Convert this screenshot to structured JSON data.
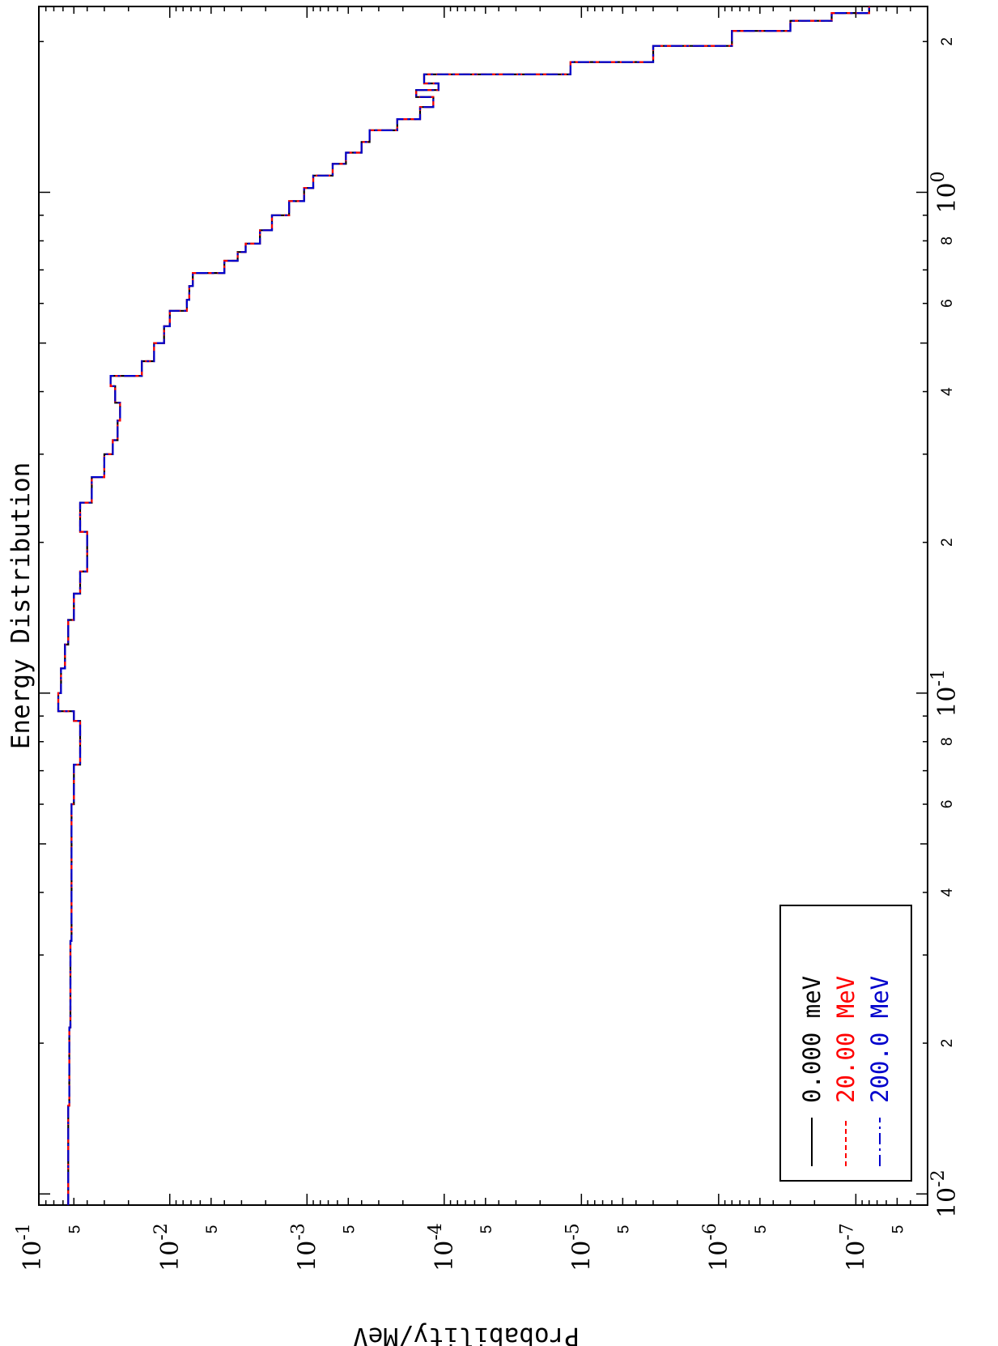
{
  "chart_data": {
    "type": "line",
    "title": "Energy Distribution",
    "xlabel": "",
    "ylabel": "Probability/MeV",
    "x_scale": "log",
    "y_scale": "log",
    "xlim": [
      0.0095,
      2.35
    ],
    "ylim": [
      3e-08,
      0.09
    ],
    "x_ticks": [
      {
        "value": 0.01,
        "base": "10",
        "exp": "-2"
      },
      {
        "value": 0.02,
        "label": "2"
      },
      {
        "value": 0.04,
        "label": "4"
      },
      {
        "value": 0.06,
        "label": "6"
      },
      {
        "value": 0.08,
        "label": "8"
      },
      {
        "value": 0.1,
        "base": "10",
        "exp": "-1"
      },
      {
        "value": 0.2,
        "label": "2"
      },
      {
        "value": 0.4,
        "label": "4"
      },
      {
        "value": 0.6,
        "label": "6"
      },
      {
        "value": 0.8,
        "label": "8"
      },
      {
        "value": 1.0,
        "base": "10",
        "exp": "0"
      },
      {
        "value": 2.0,
        "label": "2"
      }
    ],
    "y_ticks": [
      {
        "value": 0.1,
        "base": "10",
        "exp": "-1"
      },
      {
        "value": 0.05,
        "label": "5"
      },
      {
        "value": 0.01,
        "base": "10",
        "exp": "-2"
      },
      {
        "value": 0.005,
        "label": "5"
      },
      {
        "value": 0.001,
        "base": "10",
        "exp": "-3"
      },
      {
        "value": 0.0005,
        "label": "5"
      },
      {
        "value": 0.0001,
        "base": "10",
        "exp": "-4"
      },
      {
        "value": 5e-05,
        "label": "5"
      },
      {
        "value": 1e-05,
        "base": "10",
        "exp": "-5"
      },
      {
        "value": 5e-06,
        "label": "5"
      },
      {
        "value": 1e-06,
        "base": "10",
        "exp": "-6"
      },
      {
        "value": 5e-07,
        "label": "5"
      },
      {
        "value": 1e-07,
        "base": "10",
        "exp": "-7"
      },
      {
        "value": 5e-08,
        "label": "5"
      }
    ],
    "legend": {
      "placement": "bottom-left",
      "entries": [
        {
          "label": "0.000  meV",
          "color": "#000000",
          "dash": "solid"
        },
        {
          "label": "20.00  MeV",
          "color": "#ff0000",
          "dash": "dashed"
        },
        {
          "label": "200.0  MeV",
          "color": "#0000cc",
          "dash": "dash-dot"
        }
      ]
    },
    "series": [
      {
        "name": "0.000  meV",
        "color": "#000000"
      },
      {
        "name": "20.00  MeV",
        "color": "#ff0000"
      },
      {
        "name": "200.0  MeV",
        "color": "#0000cc"
      }
    ],
    "x": [
      0.0095,
      0.015,
      0.0215,
      0.032,
      0.046,
      0.06,
      0.072,
      0.088,
      0.092,
      0.1,
      0.112,
      0.125,
      0.14,
      0.158,
      0.175,
      0.19,
      0.21,
      0.24,
      0.27,
      0.3,
      0.32,
      0.35,
      0.38,
      0.41,
      0.43,
      0.46,
      0.5,
      0.54,
      0.58,
      0.61,
      0.65,
      0.69,
      0.73,
      0.76,
      0.79,
      0.84,
      0.9,
      0.96,
      1.02,
      1.08,
      1.14,
      1.2,
      1.26,
      1.33,
      1.4,
      1.48,
      1.55,
      1.6,
      1.65,
      1.72,
      1.82,
      1.96,
      2.1,
      2.2,
      2.28,
      2.35
    ],
    "y": [
      0.055,
      0.054,
      0.053,
      0.052,
      0.052,
      0.05,
      0.045,
      0.05,
      0.065,
      0.062,
      0.058,
      0.055,
      0.05,
      0.045,
      0.04,
      0.04,
      0.045,
      0.037,
      0.03,
      0.026,
      0.024,
      0.023,
      0.025,
      0.027,
      0.016,
      0.013,
      0.011,
      0.01,
      0.0075,
      0.0072,
      0.0068,
      0.004,
      0.0032,
      0.0028,
      0.0022,
      0.0018,
      0.00135,
      0.00105,
      0.0009,
      0.00065,
      0.00052,
      0.0004,
      0.00035,
      0.00022,
      0.00015,
      0.00012,
      0.00016,
      0.00011,
      0.00014,
      1.2e-05,
      3e-06,
      8e-07,
      3e-07,
      1.5e-07,
      8e-08,
      4e-08
    ]
  }
}
